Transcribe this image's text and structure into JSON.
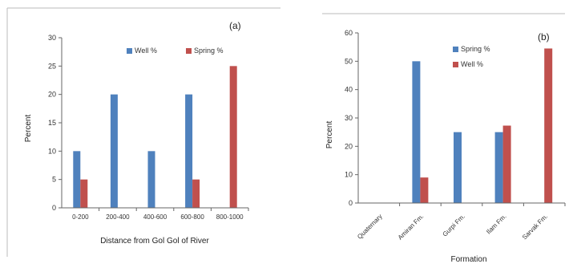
{
  "chart_data": [
    {
      "type": "bar",
      "panel_label": "(a)",
      "categories": [
        "0-200",
        "200-400",
        "400-600",
        "600-800",
        "800-1000"
      ],
      "series": [
        {
          "name": "Well %",
          "color": "#4f81bd",
          "values": [
            10,
            20,
            10,
            20,
            0
          ]
        },
        {
          "name": "Spring %",
          "color": "#c0504d",
          "values": [
            5,
            0,
            0,
            5,
            25
          ]
        }
      ],
      "xlabel": "Distance from Gol Gol of River",
      "ylabel": "Percent",
      "ylim": [
        0,
        30
      ],
      "yticks": [
        0,
        5,
        10,
        15,
        20,
        25,
        30
      ],
      "grid": false,
      "legend_position": "top"
    },
    {
      "type": "bar",
      "panel_label": "(b)",
      "categories": [
        "Quaternary",
        "Amiran Fm.",
        "Gurpi Fm.",
        "Ilam Fm.",
        "Sarvak Fm."
      ],
      "series": [
        {
          "name": "Spring %",
          "color": "#4f81bd",
          "values": [
            0,
            50,
            25,
            25,
            0
          ]
        },
        {
          "name": "Well %",
          "color": "#c0504d",
          "values": [
            0,
            9,
            0,
            27.3,
            54.5
          ]
        }
      ],
      "xlabel": "Formation",
      "ylabel": "Percent",
      "ylim": [
        0,
        60
      ],
      "yticks": [
        0,
        10,
        20,
        30,
        40,
        50,
        60
      ],
      "grid": false,
      "legend_position": "top-right"
    }
  ]
}
